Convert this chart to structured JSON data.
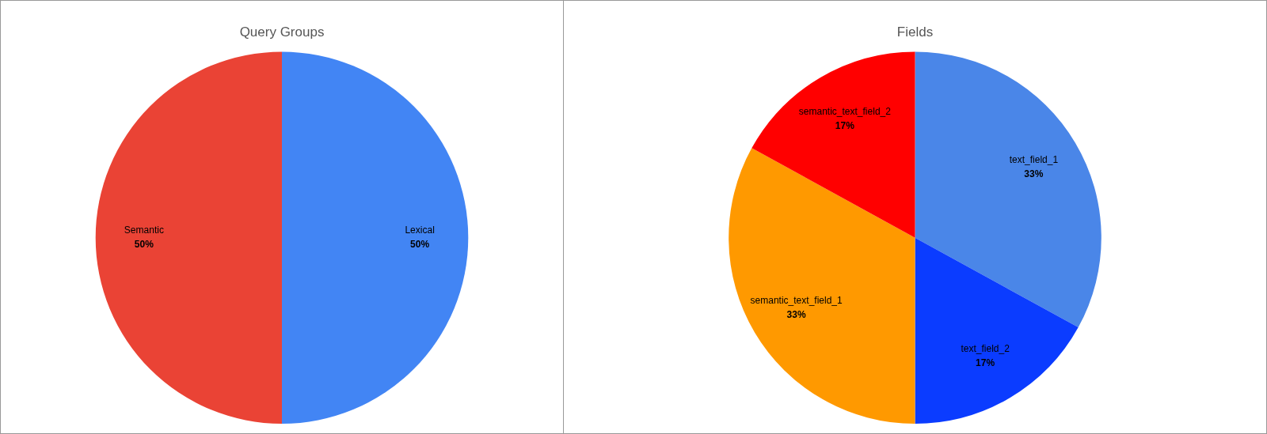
{
  "chart_data": [
    {
      "type": "pie",
      "title": "Query Groups",
      "categories": [
        "Lexical",
        "Semantic"
      ],
      "values": [
        50,
        50
      ],
      "colors": [
        "#4285f4",
        "#ea4335"
      ],
      "value_labels": [
        "50%",
        "50%"
      ],
      "legend": false
    },
    {
      "type": "pie",
      "title": "Fields",
      "categories": [
        "text_field_1",
        "text_field_2",
        "semantic_text_field_1",
        "semantic_text_field_2"
      ],
      "values": [
        33,
        17,
        33,
        17
      ],
      "colors": [
        "#4a86e8",
        "#0b3cff",
        "#ff9900",
        "#ff0000"
      ],
      "value_labels": [
        "33%",
        "17%",
        "33%",
        "17%"
      ],
      "legend": false
    }
  ]
}
